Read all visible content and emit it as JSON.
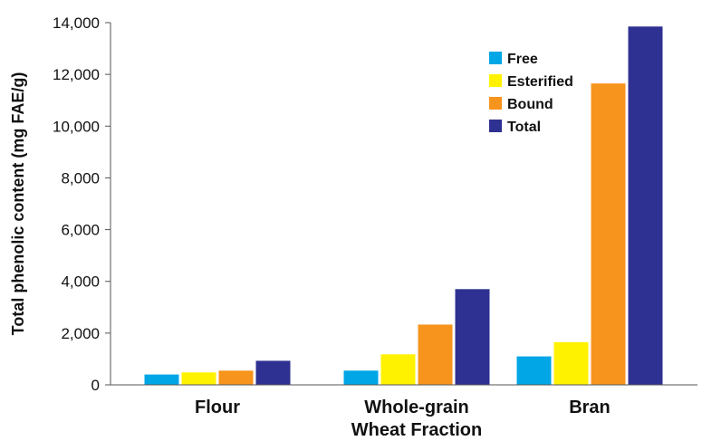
{
  "chart_data": {
    "type": "bar",
    "title": "",
    "xlabel": "Wheat Fraction",
    "ylabel": "Total phenolic content (mg FAE/g)",
    "ylim": [
      0,
      14000
    ],
    "yticks": [
      0,
      2000,
      4000,
      6000,
      8000,
      10000,
      12000,
      14000
    ],
    "ytick_labels": [
      "0",
      "2,000",
      "4,000",
      "6,000",
      "8,000",
      "10,000",
      "12,000",
      "14,000"
    ],
    "categories": [
      "Flour",
      "Whole-grain",
      "Bran"
    ],
    "series": [
      {
        "name": "Free",
        "color": "#00a6e6",
        "values": [
          400,
          550,
          1100
        ]
      },
      {
        "name": "Esterified",
        "color": "#fff200",
        "values": [
          480,
          1180,
          1650
        ]
      },
      {
        "name": "Bound",
        "color": "#f7941d",
        "values": [
          550,
          2330,
          11650
        ]
      },
      {
        "name": "Total",
        "color": "#2e3192",
        "values": [
          930,
          3700,
          13850
        ]
      }
    ],
    "grid": false,
    "legend_position": "top-right"
  }
}
